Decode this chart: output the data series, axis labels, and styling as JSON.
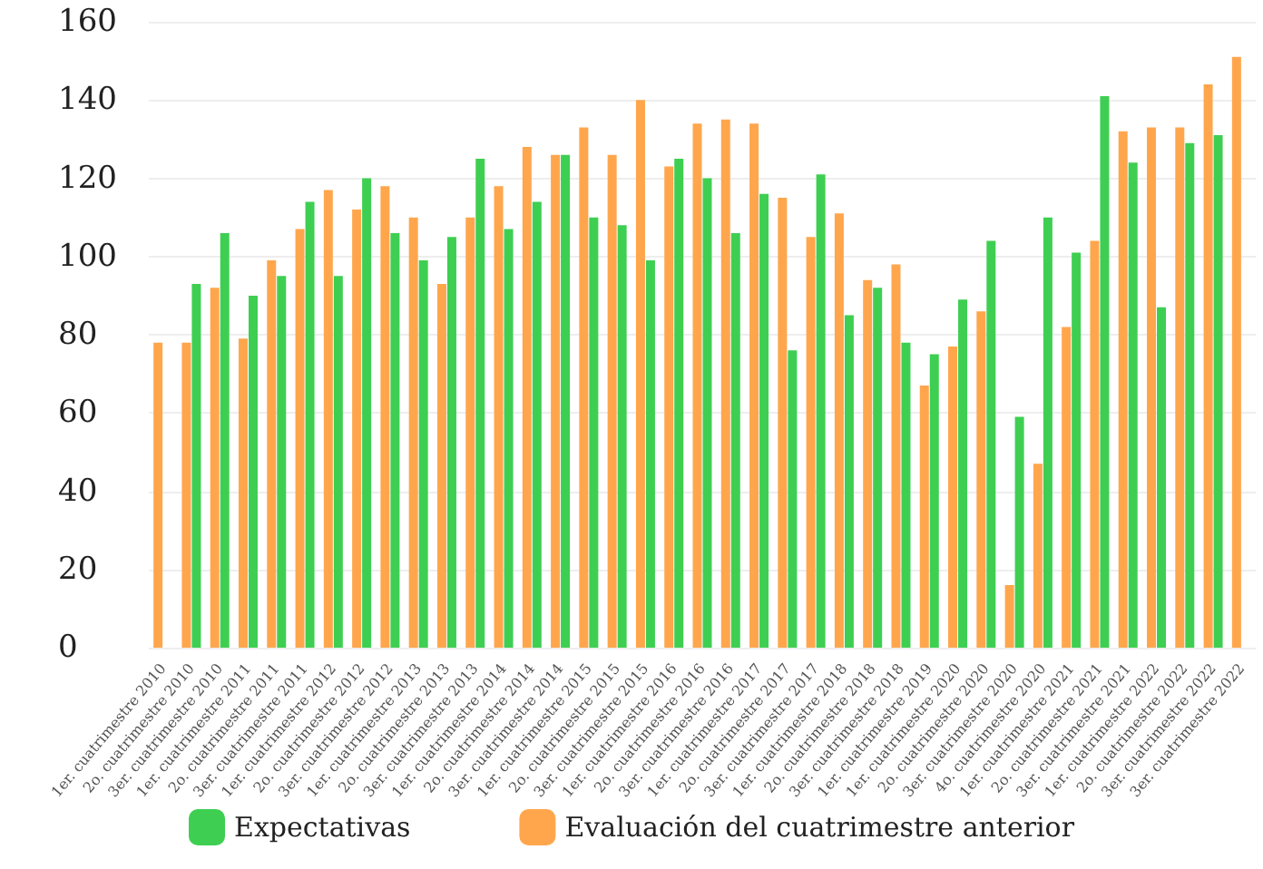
{
  "chart_data": {
    "type": "bar",
    "categories": [
      "1er. cuatrimestre 2010",
      "2o. cuatrimestre 2010",
      "3er. cuatrimestre 2010",
      "1er. cuatrimestre 2011",
      "2o. cuatrimestre 2011",
      "3er. cuatrimestre 2011",
      "1er. cuatrimestre 2012",
      "2o. cuatrimestre 2012",
      "3er. cuatrimestre 2012",
      "1er. cuatrimestre 2013",
      "2o. cuatrimestre 2013",
      "3er. cuatrimestre 2013",
      "1er. cuatrimestre 2014",
      "2o. cuatrimestre 2014",
      "3er. cuatrimestre 2014",
      "1er. cuatrimestre 2015",
      "2o. cuatrimestre 2015",
      "3er. cuatrimestre 2015",
      "1er. cuatrimestre 2016",
      "2o. cuatrimestre 2016",
      "3er. cuatrimestre 2016",
      "1er. cuatrimestre 2017",
      "2o. cuatrimestre 2017",
      "3er. cuatrimestre 2017",
      "1er. cuatrimestre 2018",
      "2o. cuatrimestre 2018",
      "3er. cuatrimestre 2018",
      "1er. cuatrimestre 2019",
      "1er. cuatrimestre 2020",
      "2o. cuatrimestre 2020",
      "3er. cuatrimestre 2020",
      "4o. cuatrimestre 2020",
      "1er. cuatrimestre 2021",
      "2o. cuatrimestre 2021",
      "3er. cuatrimestre 2021",
      "1er. cuatrimestre 2022",
      "2o. cuatrimestre 2022",
      "3er. cuatrimestre 2022",
      "3er. cuatrimestre 2022"
    ],
    "series": [
      {
        "name": "Evaluación del cuatrimestre anterior",
        "color": "#ffa64d",
        "values": [
          78,
          78,
          92,
          79,
          99,
          107,
          117,
          112,
          118,
          110,
          93,
          110,
          118,
          128,
          126,
          133,
          126,
          140,
          123,
          134,
          135,
          134,
          115,
          105,
          111,
          94,
          98,
          67,
          77,
          86,
          16,
          47,
          82,
          104,
          132,
          133,
          133,
          144,
          151
        ]
      },
      {
        "name": "Expectativas",
        "color": "#3ecf52",
        "values": [
          null,
          93,
          106,
          90,
          95,
          114,
          95,
          120,
          106,
          99,
          105,
          125,
          107,
          114,
          126,
          110,
          108,
          99,
          125,
          120,
          106,
          116,
          76,
          121,
          85,
          92,
          78,
          75,
          89,
          104,
          59,
          110,
          101,
          141,
          124,
          87,
          129,
          131,
          null
        ]
      }
    ],
    "ylim": [
      0,
      160
    ],
    "yticks": [
      0,
      20,
      40,
      60,
      80,
      100,
      120,
      140,
      160
    ],
    "grid": "y",
    "legend": "bottom"
  }
}
